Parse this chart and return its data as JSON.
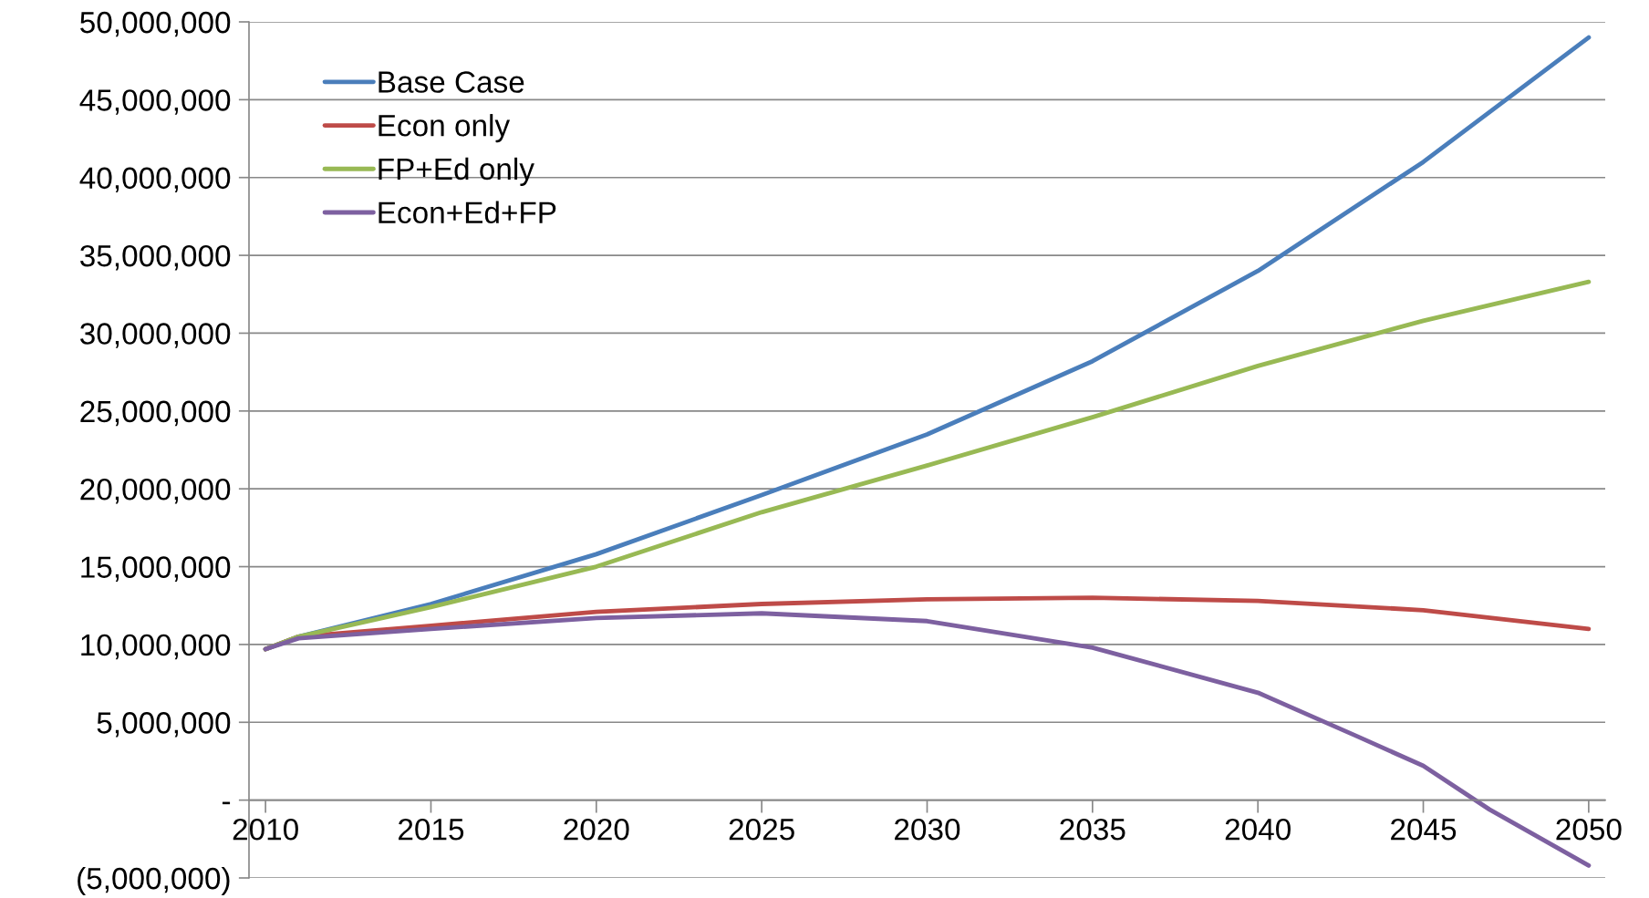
{
  "chart_data": {
    "type": "line",
    "xlim": [
      2009.5,
      2050.5
    ],
    "ylim": [
      -5000000,
      50000000
    ],
    "xticks": [
      {
        "value": 2010,
        "label": "2010"
      },
      {
        "value": 2015,
        "label": "2015"
      },
      {
        "value": 2020,
        "label": "2020"
      },
      {
        "value": 2025,
        "label": "2025"
      },
      {
        "value": 2030,
        "label": "2030"
      },
      {
        "value": 2035,
        "label": "2035"
      },
      {
        "value": 2040,
        "label": "2040"
      },
      {
        "value": 2045,
        "label": "2045"
      },
      {
        "value": 2050,
        "label": "2050"
      }
    ],
    "yticks": [
      {
        "value": -5000000,
        "label": "(5,000,000)"
      },
      {
        "value": 0,
        "label": "-"
      },
      {
        "value": 5000000,
        "label": "5,000,000"
      },
      {
        "value": 10000000,
        "label": "10,000,000"
      },
      {
        "value": 15000000,
        "label": "15,000,000"
      },
      {
        "value": 20000000,
        "label": "20,000,000"
      },
      {
        "value": 25000000,
        "label": "25,000,000"
      },
      {
        "value": 30000000,
        "label": "30,000,000"
      },
      {
        "value": 35000000,
        "label": "35,000,000"
      },
      {
        "value": 40000000,
        "label": "40,000,000"
      },
      {
        "value": 45000000,
        "label": "45,000,000"
      },
      {
        "value": 50000000,
        "label": "50,000,000"
      }
    ],
    "grid": "y",
    "legend": "top left",
    "marker": "none",
    "line_style": "solid",
    "series": [
      {
        "name": "Base Case",
        "color": "#4a7ebb",
        "x": [
          2010,
          2011,
          2015,
          2020,
          2025,
          2030,
          2035,
          2040,
          2045,
          2050
        ],
        "values": [
          9700000,
          10500000,
          12600000,
          15800000,
          19600000,
          23500000,
          28200000,
          34000000,
          41000000,
          49000000
        ]
      },
      {
        "name": "Econ only",
        "color": "#be4b48",
        "x": [
          2010,
          2011,
          2015,
          2020,
          2025,
          2030,
          2035,
          2040,
          2045,
          2050
        ],
        "values": [
          9700000,
          10500000,
          11200000,
          12100000,
          12600000,
          12900000,
          13000000,
          12800000,
          12200000,
          11000000
        ]
      },
      {
        "name": "FP+Ed only",
        "color": "#98b954",
        "x": [
          2010,
          2011,
          2015,
          2020,
          2025,
          2030,
          2035,
          2040,
          2045,
          2050
        ],
        "values": [
          9700000,
          10500000,
          12400000,
          15000000,
          18500000,
          21500000,
          24600000,
          27900000,
          30800000,
          33300000
        ]
      },
      {
        "name": "Econ+Ed+FP",
        "color": "#7d60a0",
        "x": [
          2010,
          2011,
          2015,
          2020,
          2025,
          2030,
          2035,
          2040,
          2043,
          2045,
          2047,
          2050
        ],
        "values": [
          9700000,
          10400000,
          11000000,
          11700000,
          12000000,
          11500000,
          9800000,
          6900000,
          4100000,
          2200000,
          -600000,
          -4200000
        ]
      }
    ]
  }
}
